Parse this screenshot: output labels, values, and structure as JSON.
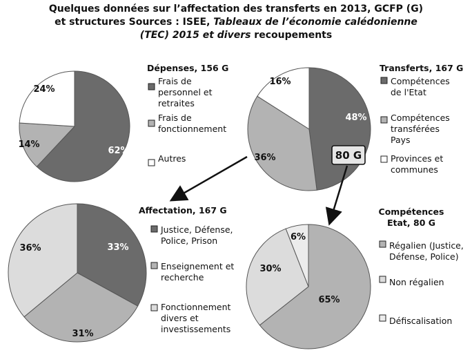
{
  "title": {
    "line1": "Quelques données sur l’affectation des transferts en 2013, GCFP (G)",
    "line2_a": "et structures   Sources :  ISEE, ",
    "line2_b": "Tableaux de l’économie calédonienne",
    "line3_a": "(TEC) 2015 et divers",
    "line3_b": " recoupements"
  },
  "callout": "80 G",
  "colors": {
    "dark": "#6b6b6b",
    "mid": "#b3b3b3",
    "light": "#dcdcdc",
    "lighter": "#ececec",
    "white": "#ffffff",
    "stroke": "#555555"
  },
  "chart_data": [
    {
      "type": "pie",
      "title": "Dépenses, 156 G",
      "legend_placement": "right",
      "slices": [
        {
          "label": "Frais de personnel et retraites",
          "value": 62,
          "display": "62%",
          "color": "#6b6b6b"
        },
        {
          "label": "Frais de fonctionnement",
          "value": 14,
          "display": "14%",
          "color": "#b3b3b3"
        },
        {
          "label": "Autres",
          "value": 24,
          "display": "24%",
          "color": "#ffffff"
        }
      ]
    },
    {
      "type": "pie",
      "title": "Transferts, 167 G",
      "legend_placement": "right",
      "slices": [
        {
          "label": "Compétences de l'Etat",
          "value": 48,
          "display": "48%",
          "color": "#6b6b6b"
        },
        {
          "label": "Compétences transférées Pays",
          "value": 36,
          "display": "36%",
          "color": "#b3b3b3"
        },
        {
          "label": "Provinces et communes",
          "value": 16,
          "display": "16%",
          "color": "#ffffff"
        }
      ]
    },
    {
      "type": "pie",
      "title": "Affectation, 167 G",
      "legend_placement": "right",
      "slices": [
        {
          "label": "Justice, Défense, Police, Prison",
          "value": 33,
          "display": "33%",
          "color": "#6b6b6b"
        },
        {
          "label": "Enseignement et recherche",
          "value": 31,
          "display": "31%",
          "color": "#b3b3b3"
        },
        {
          "label": "Fonctionnement divers et investissements",
          "value": 36,
          "display": "36%",
          "color": "#dcdcdc"
        }
      ]
    },
    {
      "type": "pie",
      "title": "Compétences Etat, 80 G",
      "legend_placement": "right",
      "slices": [
        {
          "label": "Régalien (Justice, Défense, Police)",
          "value": 65,
          "display": "65%",
          "color": "#b3b3b3"
        },
        {
          "label": "Non régalien",
          "value": 30,
          "display": "30%",
          "color": "#dcdcdc"
        },
        {
          "label": "Défiscalisation",
          "value": 6,
          "display": "6%",
          "color": "#ececec"
        }
      ]
    }
  ]
}
